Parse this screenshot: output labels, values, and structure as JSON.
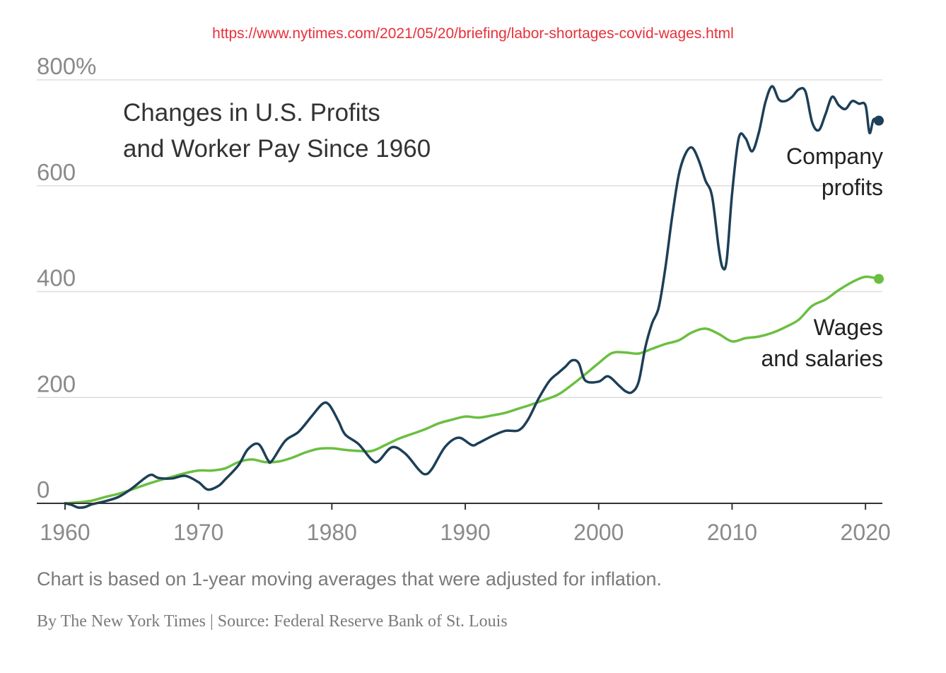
{
  "source_url": "https://www.nytimes.com/2021/05/20/briefing/labor-shortages-covid-wages.html",
  "note": "Chart is based on 1-year moving averages that were adjusted for inflation.",
  "credit": "By The New York Times | Source: Federal Reserve Bank of St. Louis",
  "colors": {
    "profits": "#1d3f57",
    "wages": "#6abf40",
    "grid": "#dddddd",
    "axis": "#333333"
  },
  "chart_data": {
    "type": "line",
    "title_lines": [
      "Changes in U.S. Profits",
      "and Worker Pay Since 1960"
    ],
    "ylim": [
      0,
      800
    ],
    "xlim": [
      1960,
      2021
    ],
    "y_ticks": [
      {
        "value": 0,
        "label": "0"
      },
      {
        "value": 200,
        "label": "200"
      },
      {
        "value": 400,
        "label": "400"
      },
      {
        "value": 600,
        "label": "600"
      },
      {
        "value": 800,
        "label": "800%"
      }
    ],
    "x_ticks": [
      {
        "value": 1960,
        "label": "1960"
      },
      {
        "value": 1970,
        "label": "1970"
      },
      {
        "value": 1980,
        "label": "1980"
      },
      {
        "value": 1990,
        "label": "1990"
      },
      {
        "value": 2000,
        "label": "2000"
      },
      {
        "value": 2010,
        "label": "2010"
      },
      {
        "value": 2020,
        "label": "2020"
      }
    ],
    "grid": true,
    "series": [
      {
        "key": "profits",
        "label_lines": [
          "Company",
          "profits"
        ],
        "points": [
          [
            1960,
            0
          ],
          [
            1960.5,
            -3
          ],
          [
            1961,
            -8
          ],
          [
            1961.5,
            -7
          ],
          [
            1962,
            -2
          ],
          [
            1963,
            4
          ],
          [
            1964,
            12
          ],
          [
            1965,
            28
          ],
          [
            1966,
            48
          ],
          [
            1966.5,
            54
          ],
          [
            1967,
            48
          ],
          [
            1968,
            47
          ],
          [
            1969,
            52
          ],
          [
            1970,
            40
          ],
          [
            1970.7,
            26
          ],
          [
            1971.5,
            33
          ],
          [
            1972,
            45
          ],
          [
            1973,
            72
          ],
          [
            1973.7,
            102
          ],
          [
            1974.5,
            112
          ],
          [
            1975.2,
            82
          ],
          [
            1975.5,
            80
          ],
          [
            1976.5,
            118
          ],
          [
            1977.5,
            135
          ],
          [
            1978.5,
            165
          ],
          [
            1979.3,
            188
          ],
          [
            1979.8,
            186
          ],
          [
            1980.5,
            155
          ],
          [
            1981,
            130
          ],
          [
            1982,
            112
          ],
          [
            1983,
            82
          ],
          [
            1983.5,
            80
          ],
          [
            1984.5,
            106
          ],
          [
            1985.5,
            94
          ],
          [
            1986.5,
            64
          ],
          [
            1987,
            55
          ],
          [
            1987.5,
            65
          ],
          [
            1988.5,
            107
          ],
          [
            1989.5,
            124
          ],
          [
            1990.5,
            110
          ],
          [
            1991,
            114
          ],
          [
            1992,
            127
          ],
          [
            1993,
            137
          ],
          [
            1994,
            138
          ],
          [
            1994.7,
            158
          ],
          [
            1995.5,
            198
          ],
          [
            1996.3,
            231
          ],
          [
            1997,
            247
          ],
          [
            1997.5,
            258
          ],
          [
            1998,
            270
          ],
          [
            1998.5,
            265
          ],
          [
            1999,
            232
          ],
          [
            2000,
            230
          ],
          [
            2000.7,
            240
          ],
          [
            2001.5,
            223
          ],
          [
            2002,
            212
          ],
          [
            2002.5,
            210
          ],
          [
            2003,
            230
          ],
          [
            2003.5,
            295
          ],
          [
            2004,
            340
          ],
          [
            2004.5,
            370
          ],
          [
            2005,
            445
          ],
          [
            2005.5,
            540
          ],
          [
            2006,
            620
          ],
          [
            2006.5,
            660
          ],
          [
            2007,
            672
          ],
          [
            2007.5,
            648
          ],
          [
            2008,
            610
          ],
          [
            2008.5,
            580
          ],
          [
            2009,
            482
          ],
          [
            2009.3,
            445
          ],
          [
            2009.6,
            460
          ],
          [
            2010,
            585
          ],
          [
            2010.5,
            690
          ],
          [
            2011,
            690
          ],
          [
            2011.5,
            665
          ],
          [
            2012,
            700
          ],
          [
            2012.5,
            758
          ],
          [
            2013,
            788
          ],
          [
            2013.5,
            763
          ],
          [
            2014,
            760
          ],
          [
            2014.5,
            768
          ],
          [
            2015,
            782
          ],
          [
            2015.5,
            778
          ],
          [
            2016,
            720
          ],
          [
            2016.5,
            705
          ],
          [
            2017,
            735
          ],
          [
            2017.5,
            768
          ],
          [
            2018,
            752
          ],
          [
            2018.5,
            745
          ],
          [
            2019,
            760
          ],
          [
            2019.5,
            755
          ],
          [
            2020,
            752
          ],
          [
            2020.3,
            700
          ],
          [
            2020.6,
            725
          ],
          [
            2021,
            723
          ]
        ]
      },
      {
        "key": "wages",
        "label_lines": [
          "Wages",
          "and salaries"
        ],
        "points": [
          [
            1960,
            0
          ],
          [
            1961,
            2
          ],
          [
            1962,
            5
          ],
          [
            1963,
            12
          ],
          [
            1964,
            18
          ],
          [
            1965,
            26
          ],
          [
            1966,
            35
          ],
          [
            1967,
            43
          ],
          [
            1968,
            50
          ],
          [
            1969,
            57
          ],
          [
            1970,
            62
          ],
          [
            1971,
            62
          ],
          [
            1972,
            66
          ],
          [
            1973,
            78
          ],
          [
            1974,
            83
          ],
          [
            1975,
            78
          ],
          [
            1976,
            79
          ],
          [
            1977,
            86
          ],
          [
            1978,
            96
          ],
          [
            1979,
            103
          ],
          [
            1980,
            104
          ],
          [
            1981,
            101
          ],
          [
            1982,
            99
          ],
          [
            1983,
            99
          ],
          [
            1984,
            110
          ],
          [
            1985,
            122
          ],
          [
            1986,
            131
          ],
          [
            1987,
            140
          ],
          [
            1988,
            151
          ],
          [
            1989,
            158
          ],
          [
            1990,
            164
          ],
          [
            1991,
            162
          ],
          [
            1992,
            166
          ],
          [
            1993,
            171
          ],
          [
            1994,
            179
          ],
          [
            1995,
            187
          ],
          [
            1996,
            196
          ],
          [
            1997,
            206
          ],
          [
            1998,
            224
          ],
          [
            1999,
            244
          ],
          [
            2000,
            265
          ],
          [
            2001,
            284
          ],
          [
            2002,
            285
          ],
          [
            2003,
            283
          ],
          [
            2004,
            292
          ],
          [
            2005,
            301
          ],
          [
            2006,
            308
          ],
          [
            2007,
            323
          ],
          [
            2008,
            330
          ],
          [
            2009,
            320
          ],
          [
            2010,
            306
          ],
          [
            2011,
            312
          ],
          [
            2012,
            315
          ],
          [
            2013,
            322
          ],
          [
            2014,
            333
          ],
          [
            2015,
            347
          ],
          [
            2016,
            373
          ],
          [
            2017,
            385
          ],
          [
            2018,
            403
          ],
          [
            2019,
            418
          ],
          [
            2020,
            428
          ],
          [
            2021,
            424
          ]
        ]
      }
    ]
  }
}
